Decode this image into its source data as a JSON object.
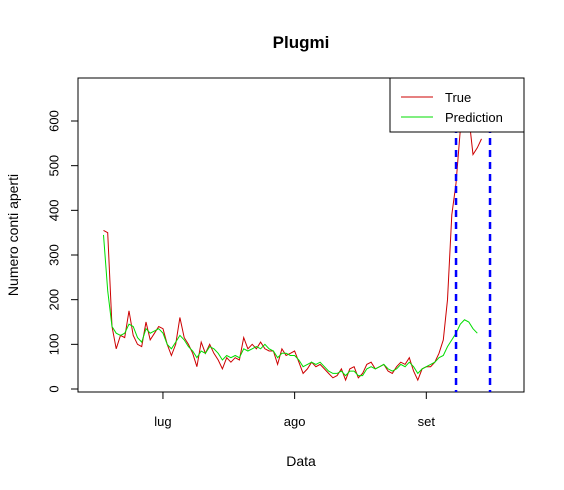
{
  "chart_data": {
    "type": "line",
    "title": "Plugmi",
    "xlabel": "Data",
    "ylabel": "Numero conti aperti",
    "x_tick_labels": [
      "lug",
      "ago",
      "set"
    ],
    "y_ticks": [
      0,
      100,
      200,
      300,
      400,
      500,
      600
    ],
    "ylim": [
      0,
      640
    ],
    "x_index_range": [
      -6,
      99
    ],
    "x_tick_positions": [
      14,
      45,
      76
    ],
    "vertical_lines_x": [
      83,
      91
    ],
    "vertical_line_color": "#0000ff",
    "legend_position": "top-right",
    "series": [
      {
        "name": "True",
        "color": "#cc0000",
        "values": [
          355,
          350,
          140,
          90,
          120,
          115,
          175,
          120,
          100,
          95,
          150,
          110,
          125,
          140,
          135,
          100,
          75,
          100,
          160,
          115,
          100,
          80,
          50,
          105,
          80,
          100,
          80,
          65,
          45,
          70,
          60,
          70,
          65,
          115,
          90,
          100,
          90,
          105,
          90,
          85,
          85,
          55,
          90,
          75,
          80,
          85,
          60,
          35,
          45,
          60,
          50,
          55,
          45,
          35,
          25,
          30,
          45,
          20,
          45,
          50,
          25,
          35,
          55,
          60,
          45,
          50,
          55,
          40,
          35,
          50,
          60,
          55,
          70,
          40,
          20,
          45,
          50,
          50,
          60,
          80,
          110,
          200,
          390,
          460,
          580,
          600,
          610,
          525,
          540,
          560
        ]
      },
      {
        "name": "Prediction",
        "color": "#00dd00",
        "values": [
          345,
          220,
          140,
          125,
          120,
          125,
          145,
          140,
          115,
          105,
          135,
          125,
          130,
          135,
          125,
          100,
          90,
          105,
          120,
          110,
          95,
          85,
          70,
          85,
          80,
          95,
          90,
          80,
          65,
          75,
          70,
          75,
          70,
          90,
          85,
          90,
          95,
          90,
          100,
          90,
          85,
          70,
          80,
          80,
          75,
          75,
          65,
          50,
          55,
          60,
          55,
          60,
          50,
          40,
          35,
          35,
          40,
          30,
          40,
          40,
          30,
          30,
          45,
          50,
          45,
          50,
          55,
          45,
          40,
          45,
          55,
          50,
          60,
          50,
          35,
          45,
          50,
          55,
          60,
          70,
          75,
          95,
          110,
          125,
          145,
          155,
          150,
          135,
          125
        ]
      }
    ]
  }
}
